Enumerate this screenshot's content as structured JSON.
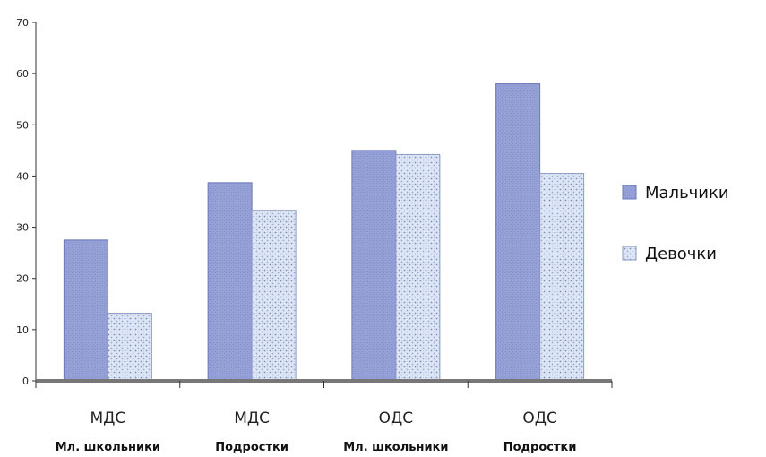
{
  "chart_data": {
    "type": "bar",
    "categories": [
      {
        "main": "МДС",
        "sub": "Мл. школьники"
      },
      {
        "main": "МДС",
        "sub": "Подростки"
      },
      {
        "main": "ОДС",
        "sub": "Мл. школьники"
      },
      {
        "main": "ОДС",
        "sub": "Подростки"
      }
    ],
    "series": [
      {
        "name": "Мальчики",
        "values": [
          27.5,
          38.7,
          45,
          58
        ],
        "color": "#8f9bd3",
        "pattern": "solid"
      },
      {
        "name": "Девочки",
        "values": [
          13.2,
          33.3,
          44.2,
          40.5
        ],
        "color": "#d9e3f5",
        "pattern": "dotted"
      }
    ],
    "ylim": [
      0,
      70
    ],
    "yticks": [
      "0",
      "10",
      "20",
      "30",
      "40",
      "50",
      "60",
      "70"
    ],
    "grid": false,
    "legend": "right",
    "title": "",
    "xlabel": "",
    "ylabel": ""
  }
}
